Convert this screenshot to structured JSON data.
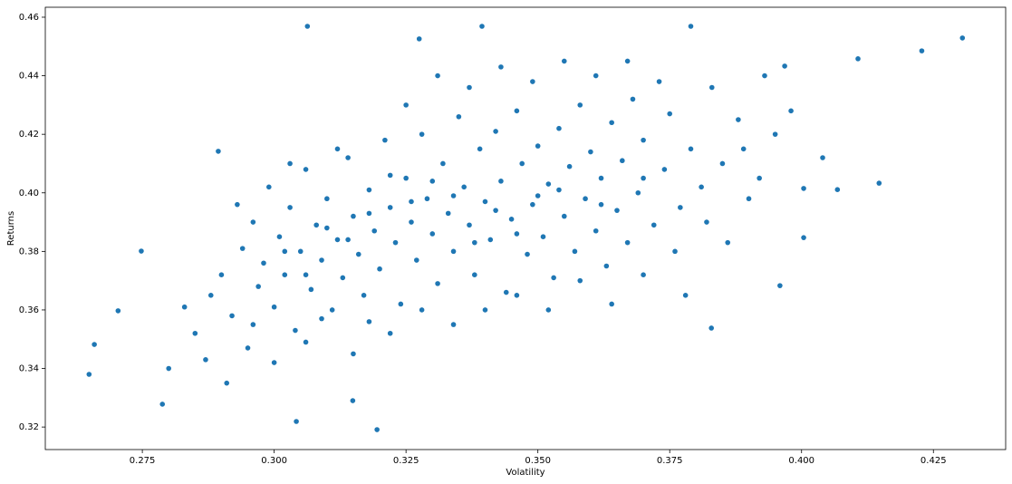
{
  "chart_data": {
    "type": "scatter",
    "xlabel": "Volatility",
    "ylabel": "Returns",
    "color": "#1f77b4",
    "grid": false,
    "xlim": [
      0.2566,
      0.4387
    ],
    "ylim": [
      0.3123,
      0.4634
    ],
    "xticks": [
      0.275,
      {
        "value": 0.3,
        "label": "0.300"
      },
      0.325,
      {
        "value": 0.35,
        "label": "0.350"
      },
      0.375,
      {
        "value": 0.4,
        "label": "0.400"
      },
      0.425
    ],
    "yticks": [
      0.32,
      0.34,
      0.36,
      0.38,
      {
        "value": 0.4,
        "label": "0.40"
      },
      0.42,
      0.44,
      0.46
    ],
    "x": [
      0.4305,
      0.4228,
      0.4107,
      0.4147,
      0.4068,
      0.4004,
      0.4004,
      0.404,
      0.3968,
      0.3959,
      0.3195,
      0.3042,
      0.2649,
      0.2659,
      0.2704,
      0.2788,
      0.3063,
      0.3394,
      0.379,
      0.3275,
      0.3829,
      0.3149,
      0.2894,
      0.2748,
      0.285,
      0.288,
      0.29,
      0.292,
      0.294,
      0.295,
      0.296,
      0.297,
      0.298,
      0.299,
      0.3,
      0.301,
      0.302,
      0.303,
      0.304,
      0.305,
      0.306,
      0.307,
      0.308,
      0.309,
      0.31,
      0.311,
      0.312,
      0.313,
      0.314,
      0.315,
      0.316,
      0.317,
      0.318,
      0.319,
      0.32,
      0.321,
      0.322,
      0.323,
      0.324,
      0.325,
      0.326,
      0.327,
      0.328,
      0.329,
      0.33,
      0.331,
      0.332,
      0.333,
      0.334,
      0.335,
      0.336,
      0.337,
      0.338,
      0.339,
      0.34,
      0.341,
      0.342,
      0.343,
      0.344,
      0.345,
      0.346,
      0.347,
      0.348,
      0.349,
      0.35,
      0.351,
      0.352,
      0.353,
      0.354,
      0.355,
      0.356,
      0.357,
      0.358,
      0.359,
      0.36,
      0.361,
      0.362,
      0.363,
      0.364,
      0.365,
      0.366,
      0.367,
      0.368,
      0.369,
      0.37,
      0.372,
      0.374,
      0.375,
      0.377,
      0.379,
      0.381,
      0.383,
      0.385,
      0.388,
      0.39,
      0.393,
      0.28,
      0.283,
      0.287,
      0.291,
      0.293,
      0.296,
      0.3,
      0.303,
      0.306,
      0.309,
      0.312,
      0.315,
      0.318,
      0.322,
      0.325,
      0.328,
      0.331,
      0.334,
      0.337,
      0.34,
      0.343,
      0.346,
      0.349,
      0.352,
      0.355,
      0.358,
      0.361,
      0.364,
      0.367,
      0.37,
      0.373,
      0.376,
      0.378,
      0.382,
      0.386,
      0.389,
      0.392,
      0.395,
      0.398,
      0.302,
      0.31,
      0.318,
      0.326,
      0.334,
      0.342,
      0.35,
      0.306,
      0.314,
      0.322,
      0.33,
      0.338,
      0.346,
      0.354,
      0.362,
      0.37
    ],
    "values": [
      0.4529,
      0.4485,
      0.4458,
      0.4033,
      0.4011,
      0.4015,
      0.3847,
      0.412,
      0.4433,
      0.3683,
      0.3191,
      0.3219,
      0.338,
      0.3482,
      0.3597,
      0.3278,
      0.4569,
      0.4569,
      0.4569,
      0.4526,
      0.3538,
      0.329,
      0.4142,
      0.3801,
      0.352,
      0.365,
      0.372,
      0.358,
      0.381,
      0.347,
      0.39,
      0.368,
      0.376,
      0.402,
      0.361,
      0.385,
      0.372,
      0.395,
      0.353,
      0.38,
      0.408,
      0.367,
      0.389,
      0.377,
      0.398,
      0.36,
      0.384,
      0.371,
      0.412,
      0.392,
      0.379,
      0.365,
      0.401,
      0.387,
      0.374,
      0.418,
      0.395,
      0.383,
      0.362,
      0.405,
      0.39,
      0.377,
      0.42,
      0.398,
      0.386,
      0.369,
      0.41,
      0.393,
      0.38,
      0.426,
      0.402,
      0.389,
      0.372,
      0.415,
      0.397,
      0.384,
      0.421,
      0.404,
      0.366,
      0.391,
      0.428,
      0.41,
      0.379,
      0.396,
      0.416,
      0.385,
      0.403,
      0.371,
      0.422,
      0.392,
      0.409,
      0.38,
      0.43,
      0.398,
      0.414,
      0.387,
      0.405,
      0.375,
      0.424,
      0.394,
      0.411,
      0.383,
      0.432,
      0.4,
      0.418,
      0.389,
      0.408,
      0.427,
      0.395,
      0.415,
      0.402,
      0.436,
      0.41,
      0.425,
      0.398,
      0.44,
      0.34,
      0.361,
      0.343,
      0.335,
      0.396,
      0.355,
      0.342,
      0.41,
      0.349,
      0.357,
      0.415,
      0.345,
      0.356,
      0.352,
      0.43,
      0.36,
      0.44,
      0.355,
      0.436,
      0.36,
      0.443,
      0.365,
      0.438,
      0.36,
      0.445,
      0.37,
      0.44,
      0.362,
      0.445,
      0.372,
      0.438,
      0.38,
      0.365,
      0.39,
      0.383,
      0.415,
      0.405,
      0.42,
      0.428,
      0.38,
      0.388,
      0.393,
      0.397,
      0.399,
      0.394,
      0.399,
      0.372,
      0.384,
      0.406,
      0.404,
      0.383,
      0.386,
      0.401,
      0.396,
      0.405
    ]
  }
}
